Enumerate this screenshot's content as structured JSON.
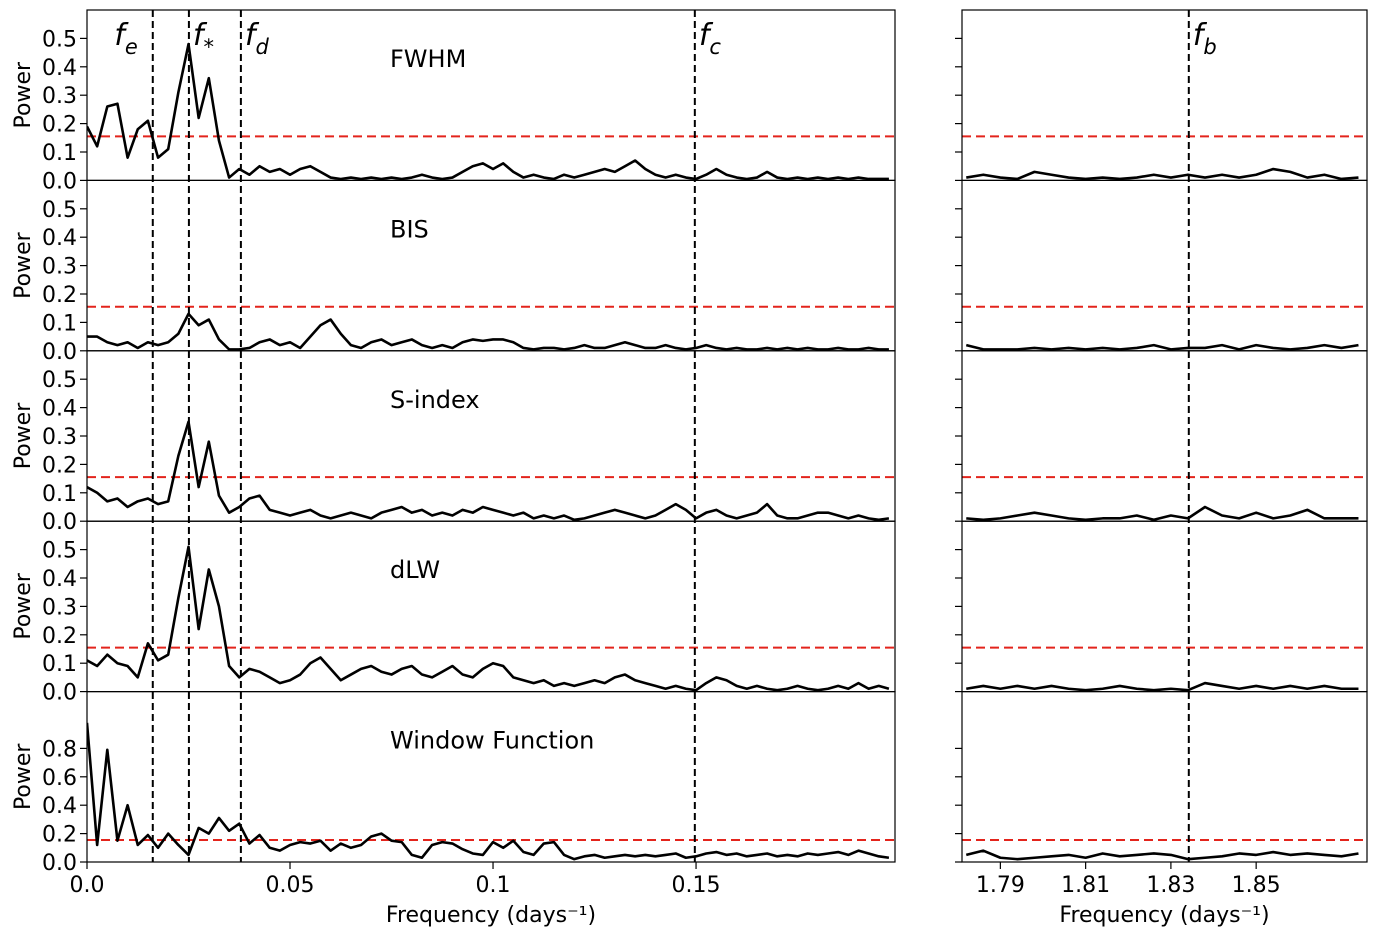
{
  "chart_data": {
    "type": "line",
    "ylabel": "Power",
    "color": "#000000",
    "threshold": 0.155,
    "threshold_color": "#e3241c",
    "x_axes": [
      {
        "xlim": [
          0,
          0.199
        ],
        "xlabel": "Frequency (days⁻¹)",
        "xticks": [
          {
            "value": 0,
            "label": "0.0"
          },
          0.05,
          0.1,
          0.15
        ],
        "x": [
          0,
          0.0025,
          0.005,
          0.0075,
          0.01,
          0.0125,
          0.015,
          0.0175,
          0.02,
          0.0225,
          0.025,
          0.0275,
          0.03,
          0.0325,
          0.035,
          0.0375,
          0.04,
          0.0425,
          0.045,
          0.0475,
          0.05,
          0.0525,
          0.055,
          0.0575,
          0.06,
          0.0625,
          0.065,
          0.0675,
          0.07,
          0.0725,
          0.075,
          0.0775,
          0.08,
          0.0825,
          0.085,
          0.0875,
          0.09,
          0.0925,
          0.095,
          0.0975,
          0.1,
          0.1025,
          0.105,
          0.1075,
          0.11,
          0.1125,
          0.115,
          0.1175,
          0.12,
          0.1225,
          0.125,
          0.1275,
          0.13,
          0.1325,
          0.135,
          0.1375,
          0.14,
          0.1425,
          0.145,
          0.1475,
          0.15,
          0.1525,
          0.155,
          0.1575,
          0.16,
          0.1625,
          0.165,
          0.1675,
          0.17,
          0.1725,
          0.175,
          0.1775,
          0.18,
          0.1825,
          0.185,
          0.1875,
          0.19,
          0.1925,
          0.195,
          0.1975
        ],
        "markers": [
          {
            "symbol": "f",
            "subscript": "e",
            "x": 0.0162
          },
          {
            "symbol": "f",
            "subscript": "*",
            "x": 0.0251
          },
          {
            "symbol": "f",
            "subscript": "d",
            "x": 0.0379
          },
          {
            "symbol": "f",
            "subscript": "c",
            "x": 0.1497
          }
        ]
      },
      {
        "xlim": [
          1.781,
          1.876
        ],
        "xlabel": "Frequency (days⁻¹)",
        "xticks": [
          1.79,
          1.81,
          1.83,
          1.85
        ],
        "x": [
          1.782,
          1.786,
          1.79,
          1.794,
          1.798,
          1.802,
          1.806,
          1.81,
          1.814,
          1.818,
          1.822,
          1.826,
          1.83,
          1.834,
          1.838,
          1.842,
          1.846,
          1.85,
          1.854,
          1.858,
          1.862,
          1.866,
          1.87,
          1.874
        ],
        "markers": [
          {
            "symbol": "f",
            "subscript": "b",
            "x": 1.8342
          }
        ]
      }
    ],
    "panels": [
      {
        "title": "FWHM",
        "ylim": [
          0,
          0.6
        ],
        "yticks": [
          {
            "value": 0,
            "label": "0.0"
          },
          0.1,
          0.2,
          0.3,
          0.4,
          0.5
        ],
        "left_values": [
          0.19,
          0.12,
          0.26,
          0.27,
          0.08,
          0.18,
          0.21,
          0.08,
          0.11,
          0.31,
          0.48,
          0.22,
          0.36,
          0.14,
          0.01,
          0.04,
          0.02,
          0.05,
          0.03,
          0.04,
          0.02,
          0.04,
          0.05,
          0.03,
          0.01,
          0.005,
          0.01,
          0.005,
          0.01,
          0.005,
          0.01,
          0.005,
          0.01,
          0.02,
          0.01,
          0.005,
          0.01,
          0.03,
          0.05,
          0.06,
          0.04,
          0.06,
          0.03,
          0.01,
          0.02,
          0.01,
          0.005,
          0.02,
          0.01,
          0.02,
          0.03,
          0.04,
          0.03,
          0.05,
          0.07,
          0.04,
          0.02,
          0.01,
          0.02,
          0.01,
          0.005,
          0.02,
          0.04,
          0.02,
          0.01,
          0.005,
          0.01,
          0.03,
          0.01,
          0.005,
          0.01,
          0.005,
          0.01,
          0.005,
          0.01,
          0.005,
          0.01,
          0.005,
          0.005,
          0.005
        ],
        "right_values": [
          0.01,
          0.02,
          0.01,
          0.005,
          0.03,
          0.02,
          0.01,
          0.005,
          0.01,
          0.005,
          0.01,
          0.02,
          0.01,
          0.02,
          0.01,
          0.02,
          0.01,
          0.02,
          0.04,
          0.03,
          0.01,
          0.02,
          0.005,
          0.01
        ]
      },
      {
        "title": "BIS",
        "ylim": [
          0,
          0.6
        ],
        "yticks": [
          {
            "value": 0,
            "label": "0.0"
          },
          0.1,
          0.2,
          0.3,
          0.4,
          0.5
        ],
        "left_values": [
          0.05,
          0.05,
          0.03,
          0.02,
          0.03,
          0.01,
          0.03,
          0.02,
          0.03,
          0.06,
          0.13,
          0.09,
          0.11,
          0.04,
          0.005,
          0.005,
          0.01,
          0.03,
          0.04,
          0.02,
          0.03,
          0.01,
          0.05,
          0.09,
          0.11,
          0.06,
          0.02,
          0.01,
          0.03,
          0.04,
          0.02,
          0.03,
          0.04,
          0.02,
          0.01,
          0.02,
          0.01,
          0.03,
          0.04,
          0.035,
          0.04,
          0.04,
          0.03,
          0.01,
          0.005,
          0.01,
          0.01,
          0.005,
          0.01,
          0.02,
          0.01,
          0.01,
          0.02,
          0.03,
          0.02,
          0.01,
          0.01,
          0.02,
          0.01,
          0.005,
          0.01,
          0.02,
          0.01,
          0.005,
          0.01,
          0.005,
          0.005,
          0.01,
          0.005,
          0.01,
          0.005,
          0.01,
          0.005,
          0.005,
          0.01,
          0.005,
          0.005,
          0.01,
          0.005,
          0.005
        ],
        "right_values": [
          0.02,
          0.005,
          0.005,
          0.005,
          0.01,
          0.005,
          0.01,
          0.005,
          0.01,
          0.005,
          0.01,
          0.02,
          0.005,
          0.01,
          0.01,
          0.02,
          0.005,
          0.02,
          0.01,
          0.005,
          0.01,
          0.02,
          0.01,
          0.02
        ]
      },
      {
        "title": "S-index",
        "ylim": [
          0,
          0.6
        ],
        "yticks": [
          {
            "value": 0,
            "label": "0.0"
          },
          0.1,
          0.2,
          0.3,
          0.4,
          0.5
        ],
        "left_values": [
          0.12,
          0.1,
          0.07,
          0.08,
          0.05,
          0.07,
          0.08,
          0.06,
          0.07,
          0.23,
          0.35,
          0.12,
          0.28,
          0.09,
          0.03,
          0.05,
          0.08,
          0.09,
          0.04,
          0.03,
          0.02,
          0.03,
          0.04,
          0.02,
          0.01,
          0.02,
          0.03,
          0.02,
          0.01,
          0.03,
          0.04,
          0.05,
          0.03,
          0.04,
          0.02,
          0.03,
          0.02,
          0.04,
          0.03,
          0.05,
          0.04,
          0.03,
          0.02,
          0.03,
          0.01,
          0.02,
          0.01,
          0.02,
          0.005,
          0.01,
          0.02,
          0.03,
          0.04,
          0.03,
          0.02,
          0.01,
          0.02,
          0.04,
          0.06,
          0.04,
          0.01,
          0.03,
          0.04,
          0.02,
          0.01,
          0.02,
          0.03,
          0.06,
          0.02,
          0.01,
          0.01,
          0.02,
          0.03,
          0.03,
          0.02,
          0.01,
          0.02,
          0.01,
          0.005,
          0.01
        ],
        "right_values": [
          0.01,
          0.005,
          0.01,
          0.02,
          0.03,
          0.02,
          0.01,
          0.005,
          0.01,
          0.01,
          0.02,
          0.005,
          0.02,
          0.01,
          0.05,
          0.02,
          0.01,
          0.03,
          0.01,
          0.02,
          0.04,
          0.01,
          0.01,
          0.01
        ]
      },
      {
        "title": "dLW",
        "ylim": [
          0,
          0.6
        ],
        "yticks": [
          {
            "value": 0,
            "label": "0.0"
          },
          0.1,
          0.2,
          0.3,
          0.4,
          0.5
        ],
        "left_values": [
          0.11,
          0.09,
          0.13,
          0.1,
          0.09,
          0.05,
          0.17,
          0.11,
          0.13,
          0.33,
          0.51,
          0.22,
          0.43,
          0.3,
          0.09,
          0.05,
          0.08,
          0.07,
          0.05,
          0.03,
          0.04,
          0.06,
          0.1,
          0.12,
          0.08,
          0.04,
          0.06,
          0.08,
          0.09,
          0.07,
          0.06,
          0.08,
          0.09,
          0.06,
          0.05,
          0.07,
          0.09,
          0.06,
          0.05,
          0.08,
          0.1,
          0.09,
          0.05,
          0.04,
          0.03,
          0.04,
          0.02,
          0.03,
          0.02,
          0.03,
          0.04,
          0.03,
          0.05,
          0.06,
          0.04,
          0.03,
          0.02,
          0.01,
          0.02,
          0.01,
          0.005,
          0.03,
          0.05,
          0.04,
          0.02,
          0.01,
          0.02,
          0.01,
          0.005,
          0.01,
          0.02,
          0.01,
          0.005,
          0.01,
          0.02,
          0.01,
          0.03,
          0.01,
          0.02,
          0.01
        ],
        "right_values": [
          0.01,
          0.02,
          0.01,
          0.02,
          0.01,
          0.02,
          0.01,
          0.005,
          0.01,
          0.02,
          0.01,
          0.005,
          0.01,
          0.005,
          0.03,
          0.02,
          0.01,
          0.02,
          0.01,
          0.02,
          0.01,
          0.02,
          0.01,
          0.01
        ]
      },
      {
        "title": "Window Function",
        "ylim": [
          0,
          1.2
        ],
        "yticks": [
          {
            "value": 0,
            "label": "0.0"
          },
          0.2,
          0.4,
          0.6,
          0.8
        ],
        "left_values": [
          0.98,
          0.12,
          0.79,
          0.15,
          0.4,
          0.12,
          0.19,
          0.1,
          0.2,
          0.12,
          0.05,
          0.24,
          0.2,
          0.31,
          0.22,
          0.27,
          0.13,
          0.19,
          0.1,
          0.08,
          0.12,
          0.14,
          0.13,
          0.15,
          0.08,
          0.13,
          0.1,
          0.12,
          0.18,
          0.2,
          0.15,
          0.14,
          0.05,
          0.03,
          0.12,
          0.14,
          0.13,
          0.09,
          0.06,
          0.05,
          0.14,
          0.1,
          0.15,
          0.07,
          0.05,
          0.13,
          0.14,
          0.05,
          0.02,
          0.04,
          0.05,
          0.03,
          0.04,
          0.05,
          0.04,
          0.05,
          0.04,
          0.05,
          0.06,
          0.03,
          0.04,
          0.06,
          0.07,
          0.05,
          0.06,
          0.04,
          0.05,
          0.06,
          0.04,
          0.05,
          0.04,
          0.06,
          0.05,
          0.06,
          0.07,
          0.05,
          0.08,
          0.06,
          0.04,
          0.03
        ],
        "right_values": [
          0.05,
          0.08,
          0.03,
          0.02,
          0.03,
          0.04,
          0.05,
          0.03,
          0.06,
          0.04,
          0.05,
          0.06,
          0.05,
          0.02,
          0.03,
          0.04,
          0.06,
          0.05,
          0.07,
          0.05,
          0.06,
          0.05,
          0.04,
          0.06
        ]
      }
    ]
  }
}
